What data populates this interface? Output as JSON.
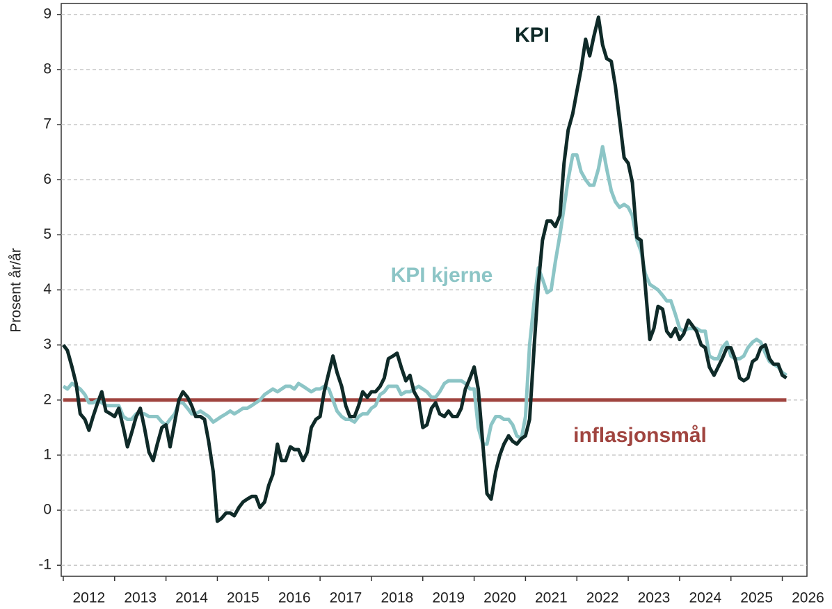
{
  "chart_data": {
    "type": "line",
    "y_label": "Prosent år/år",
    "x": [
      2012,
      2012.08,
      2012.17,
      2012.25,
      2012.33,
      2012.42,
      2012.5,
      2012.58,
      2012.67,
      2012.75,
      2012.83,
      2012.92,
      2013,
      2013.08,
      2013.17,
      2013.25,
      2013.33,
      2013.42,
      2013.5,
      2013.58,
      2013.67,
      2013.75,
      2013.83,
      2013.92,
      2014,
      2014.08,
      2014.17,
      2014.25,
      2014.33,
      2014.42,
      2014.5,
      2014.58,
      2014.67,
      2014.75,
      2014.83,
      2014.92,
      2015,
      2015.08,
      2015.17,
      2015.25,
      2015.33,
      2015.42,
      2015.5,
      2015.58,
      2015.67,
      2015.75,
      2015.83,
      2015.92,
      2016,
      2016.08,
      2016.17,
      2016.25,
      2016.33,
      2016.42,
      2016.5,
      2016.58,
      2016.67,
      2016.75,
      2016.83,
      2016.92,
      2017,
      2017.08,
      2017.17,
      2017.25,
      2017.33,
      2017.42,
      2017.5,
      2017.58,
      2017.67,
      2017.75,
      2017.83,
      2017.92,
      2018,
      2018.08,
      2018.17,
      2018.25,
      2018.33,
      2018.42,
      2018.5,
      2018.58,
      2018.67,
      2018.75,
      2018.83,
      2018.92,
      2019,
      2019.08,
      2019.17,
      2019.25,
      2019.33,
      2019.42,
      2019.5,
      2019.58,
      2019.67,
      2019.75,
      2019.83,
      2019.92,
      2020,
      2020.08,
      2020.17,
      2020.25,
      2020.33,
      2020.42,
      2020.5,
      2020.58,
      2020.67,
      2020.75,
      2020.83,
      2020.92,
      2021,
      2021.08,
      2021.17,
      2021.25,
      2021.33,
      2021.42,
      2021.5,
      2021.58,
      2021.67,
      2021.75,
      2021.83,
      2021.92,
      2022,
      2022.08,
      2022.17,
      2022.25,
      2022.33,
      2022.42,
      2022.5,
      2022.58,
      2022.67,
      2022.75,
      2022.83,
      2022.92,
      2023,
      2023.08,
      2023.17,
      2023.25,
      2023.33,
      2023.42,
      2023.5,
      2023.58,
      2023.67,
      2023.75,
      2023.83,
      2023.92,
      2024,
      2024.08,
      2024.17,
      2024.25,
      2024.33,
      2024.42,
      2024.5,
      2024.58,
      2024.67,
      2024.75,
      2024.83,
      2024.92,
      2025,
      2025.08,
      2025.17,
      2025.25,
      2025.33,
      2025.42,
      2025.5,
      2025.58,
      2025.67,
      2025.75,
      2025.83,
      2025.92,
      2026,
      2026.08
    ],
    "series": [
      {
        "name": "KPI",
        "color": "#0f2a28",
        "values": [
          3.0,
          2.9,
          2.6,
          2.3,
          1.75,
          1.65,
          1.45,
          1.7,
          1.95,
          2.15,
          1.8,
          1.75,
          1.7,
          1.85,
          1.5,
          1.15,
          1.4,
          1.7,
          1.85,
          1.5,
          1.05,
          0.9,
          1.2,
          1.5,
          1.55,
          1.15,
          1.6,
          2.0,
          2.15,
          2.05,
          1.9,
          1.7,
          1.7,
          1.65,
          1.25,
          0.7,
          -0.2,
          -0.15,
          -0.05,
          -0.05,
          -0.1,
          0.05,
          0.15,
          0.2,
          0.25,
          0.25,
          0.05,
          0.15,
          0.45,
          0.65,
          1.2,
          0.9,
          0.9,
          1.15,
          1.1,
          1.1,
          0.9,
          1.05,
          1.5,
          1.65,
          1.7,
          2.15,
          2.5,
          2.8,
          2.5,
          2.25,
          1.9,
          1.7,
          1.7,
          1.9,
          2.15,
          2.05,
          2.15,
          2.15,
          2.25,
          2.4,
          2.75,
          2.8,
          2.85,
          2.6,
          2.35,
          2.45,
          2.15,
          2.0,
          1.5,
          1.55,
          1.85,
          1.95,
          1.75,
          1.7,
          1.8,
          1.7,
          1.7,
          1.85,
          2.2,
          2.4,
          2.6,
          2.2,
          1.2,
          0.3,
          0.2,
          0.7,
          1.0,
          1.2,
          1.35,
          1.25,
          1.2,
          1.3,
          1.35,
          1.65,
          3.0,
          4.1,
          4.9,
          5.25,
          5.25,
          5.15,
          5.35,
          6.3,
          6.9,
          7.2,
          7.6,
          8.0,
          8.55,
          8.25,
          8.6,
          8.95,
          8.45,
          8.2,
          8.15,
          7.7,
          7.1,
          6.4,
          6.3,
          5.95,
          4.95,
          4.9,
          4.1,
          3.1,
          3.3,
          3.7,
          3.65,
          3.25,
          3.15,
          3.3,
          3.1,
          3.2,
          3.45,
          3.35,
          3.25,
          3.0,
          2.95,
          2.6,
          2.45,
          2.6,
          2.75,
          2.95,
          2.95,
          2.75,
          2.4,
          2.35,
          2.4,
          2.7,
          2.75,
          2.95,
          3.0,
          2.75,
          2.65,
          2.65,
          2.45,
          2.4
        ]
      },
      {
        "name": "KPI kjerne",
        "color": "#8cc5c6",
        "values": [
          2.25,
          2.2,
          2.3,
          2.25,
          2.2,
          2.1,
          1.95,
          1.95,
          2.0,
          1.95,
          1.9,
          1.9,
          1.9,
          1.9,
          1.7,
          1.65,
          1.65,
          1.75,
          1.75,
          1.75,
          1.7,
          1.7,
          1.7,
          1.6,
          1.55,
          1.65,
          1.75,
          1.95,
          1.95,
          1.85,
          1.75,
          1.75,
          1.8,
          1.75,
          1.7,
          1.6,
          1.65,
          1.7,
          1.75,
          1.8,
          1.75,
          1.8,
          1.85,
          1.85,
          1.9,
          1.95,
          2.0,
          2.1,
          2.15,
          2.2,
          2.15,
          2.2,
          2.25,
          2.25,
          2.2,
          2.3,
          2.25,
          2.2,
          2.15,
          2.2,
          2.2,
          2.25,
          2.2,
          2.0,
          1.8,
          1.7,
          1.65,
          1.65,
          1.6,
          1.7,
          1.75,
          1.75,
          1.85,
          1.9,
          2.1,
          2.15,
          2.25,
          2.25,
          2.25,
          2.1,
          2.15,
          2.15,
          2.2,
          2.25,
          2.2,
          2.15,
          2.05,
          2.05,
          2.15,
          2.3,
          2.35,
          2.35,
          2.35,
          2.35,
          2.3,
          2.2,
          2.2,
          1.5,
          1.2,
          1.2,
          1.55,
          1.7,
          1.7,
          1.65,
          1.65,
          1.55,
          1.35,
          1.3,
          1.7,
          3.0,
          3.8,
          4.4,
          4.2,
          3.95,
          4.0,
          4.5,
          5.0,
          5.5,
          6.0,
          6.45,
          6.45,
          6.15,
          6.0,
          5.9,
          5.9,
          6.2,
          6.6,
          6.2,
          5.8,
          5.6,
          5.5,
          5.55,
          5.5,
          5.35,
          4.9,
          4.7,
          4.3,
          4.1,
          4.05,
          4.0,
          3.9,
          3.8,
          3.8,
          3.55,
          3.3,
          3.25,
          3.3,
          3.3,
          3.3,
          3.25,
          3.25,
          2.8,
          2.75,
          2.75,
          2.95,
          3.05,
          2.8,
          2.75,
          2.75,
          2.8,
          2.95,
          3.05,
          3.1,
          3.05,
          2.85,
          2.7,
          2.65,
          2.6,
          2.5,
          2.45
        ]
      }
    ],
    "target": {
      "name": "inflasjonsmål",
      "color": "#a0443f",
      "value": 2
    },
    "xlim": [
      2011.96,
      2026.48
    ],
    "ylim": [
      -1.2,
      9.2
    ],
    "yticks": [
      -1,
      0,
      1,
      2,
      3,
      4,
      5,
      6,
      7,
      8,
      9
    ],
    "xticks": [
      2012,
      2013,
      2014,
      2015,
      2016,
      2017,
      2018,
      2019,
      2020,
      2021,
      2022,
      2023,
      2024,
      2025,
      2026
    ],
    "xlabels": [
      {
        "value": 2012.5,
        "label": "2012"
      },
      {
        "value": 2013.5,
        "label": "2013"
      },
      {
        "value": 2014.5,
        "label": "2014"
      },
      {
        "value": 2015.5,
        "label": "2015"
      },
      {
        "value": 2016.5,
        "label": "2016"
      },
      {
        "value": 2017.5,
        "label": "2017"
      },
      {
        "value": 2018.5,
        "label": "2018"
      },
      {
        "value": 2019.5,
        "label": "2019"
      },
      {
        "value": 2020.5,
        "label": "2020"
      },
      {
        "value": 2021.5,
        "label": "2021"
      },
      {
        "value": 2022.5,
        "label": "2022"
      },
      {
        "value": 2023.5,
        "label": "2023"
      },
      {
        "value": 2024.5,
        "label": "2024"
      },
      {
        "value": 2025.5,
        "label": "2025"
      },
      {
        "value": 2026.5,
        "label": "2026"
      }
    ],
    "grid": true
  }
}
